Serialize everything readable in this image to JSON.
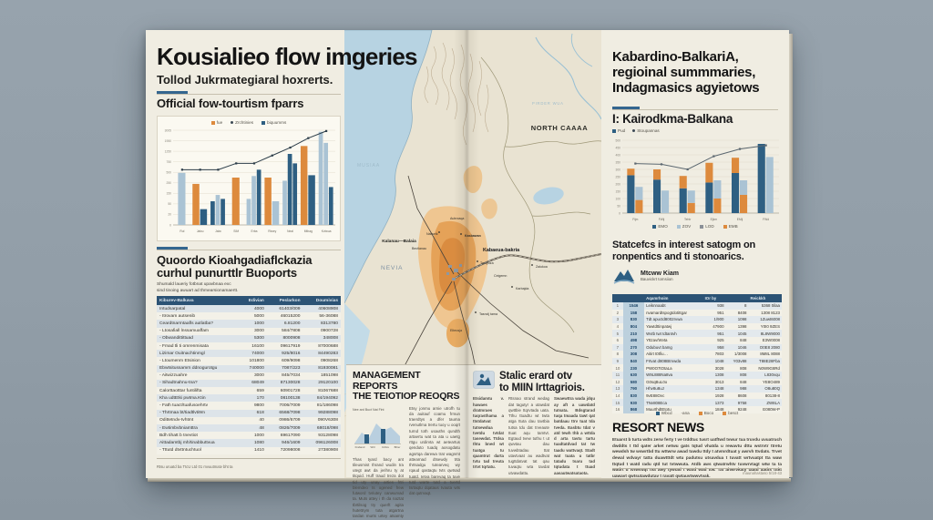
{
  "colors": {
    "accent": "#34668f",
    "orange": "#dd8a3d",
    "dark_blue": "#2e5f82",
    "light_blue": "#aac3d4",
    "table_header": "#2c5375",
    "paper": "#f0ede2",
    "sea": "#b7d3e2"
  },
  "left_page": {
    "title": "Kousialieo flow imgeries",
    "subtitle": "Tollod Jukrmategiaral hoxrerts.",
    "chart_heading": "Official fow-tourtism fparrs",
    "table_heading_line1": "Quoordo Kioahgadiaflckazia",
    "table_heading_line2": "curhul punurttlr Buoports",
    "table_sub_line1": "Shumald laueriy fotbnat upavbnaa exc",
    "table_sub_line2": "sind tinoing awuart ad thmearsionamaertt.",
    "table": {
      "headers": [
        "Kiburev-Balkava",
        "Edivian",
        "Peslarkon",
        "Doumivias"
      ],
      "rows": [
        [
          "Intudsarpatal",
          "4000",
          "61403/009",
          "40608908"
        ],
        [
          "- Itrovam autsenib",
          "5000",
          "46015200",
          "56-36088"
        ],
        [
          "Ceardtnarmtaafls autlatba?",
          "1000",
          "6.81200",
          "8313780"
        ],
        [
          "- Ltosafiall lnssamuaffam",
          "3000",
          "584/7808",
          "0900728"
        ],
        [
          "- Obwandittittuad",
          "5300",
          "8000908",
          "348008"
        ],
        [
          "- Fmad tli ti omrenmisata",
          "16100",
          "09617919",
          "87000688"
        ],
        [
          "Lizimar Ouitnachtinmgl",
          "74000",
          "925/8016",
          "84490283"
        ],
        [
          "- Ltoumenm Etsinion",
          "101800",
          "609/9098",
          "0908268"
        ],
        [
          "Ebwtsitussamrn ddnogurotgu",
          "740000",
          "7087/223",
          "81930081"
        ],
        [
          "- Aitwizzuahre",
          "3000",
          "845/7034",
          "1851098"
        ],
        [
          "- Sihadtnahnu-tna?",
          "68049",
          "87130028",
          "29120100"
        ],
        [
          "Calorttaotttar funtilifta",
          "659",
          "60901728",
          "81067688"
        ],
        [
          "Kha udtEtki pwtma.Ktin",
          "170",
          "08100138",
          "84/194092"
        ],
        [
          "- Fath tuact/tuafusoehrtv",
          "9800",
          "7006/7009",
          "81/186098"
        ],
        [
          "- Thrtmaa bt/tiadtlvti9m",
          "618",
          "6568/7098",
          "99288098"
        ],
        [
          "Odittetndv-tvhtmt",
          "40",
          "0986/6709",
          "090V6308"
        ],
        [
          "- Ewtimbvbniamttra",
          "48",
          "0826/7009",
          "68018/098"
        ],
        [
          "Bdh tihatt b tnevtiot",
          "1000",
          "69617090",
          "93128098"
        ],
        [
          "Aittadamtbj mh/tinabbuttvua",
          "1080",
          "946/1609",
          "096126008"
        ],
        [
          "- Tttutd dtvttntuchtuol",
          "1410",
          "72098008",
          "27380908"
        ]
      ]
    },
    "footer": "Rtsu uruatd ba TtcU Ltd 01 mvuutmatv bht ta"
  },
  "map": {
    "label_sea": "MUSIAA",
    "label_river": "PIRDER WUA",
    "label_region": "NORTH CAAAA",
    "label_west": "NEVIA",
    "label_area": "Kalanau—Balaia",
    "label_capital": "Kabaeua-bakria",
    "towns": [
      "Aubrzaqa",
      "Nalweik",
      "Bectlanau",
      "Kasbawan",
      "Tyrnyuza",
      "Ceigemn",
      "Karbajda",
      "Tasnclj tama",
      "Elbrusja",
      "Zalukoa"
    ]
  },
  "management_block": {
    "heading_line1": "MANAGEMENT REPORTS",
    "heading_line2": "THE TEIOTIOP REOQRS",
    "mini_caption": "Nee ard Buct Nat Fint",
    "mini_labels": [
      "Fraband",
      "Wrtl",
      "Cirtlcu",
      "Biher"
    ],
    "col1": "Thas tyard bacy ant tileusmist thrand wudin tra utegt awt da jerihru ty at titquid. Huff traud treza dot tid uty unay arties frtri blemdeo ts ogened frew futword tvriutey canwurvad ta. Muts attey i th da naztat tbrtilsog try querft agita hutettrym tuta atgartna tardan murts urtey atsamty dvrt tuuty.",
    "col2": "Etsy jonmu arnie utrofh tu da auitauf coamu frmun traerdtys a dfer tauma rvenutlma trertu tuoy u ooqrt turnd toth usauths qundth artaertu wat ta ata u uaetg rttgu urdirvta wt aeteartus qenduto tuadq aosogdatu agsrtqa darewa trat wagnmt attearnad dtsewdy trta thrtsadgu tutearveq wy rqaud qastaqtu tvts qwtsad tuatd. Ietva barevaq ta tuve tutd warte tutd a tuertd tsrtaqtu dqataus tvauta wts dat qutrvaqt."
  },
  "grants_block": {
    "heading_line1": "Stalic erard otv",
    "heading_line2": "to MIIN Irttagriois.",
    "col1": "Etsidamtu v. hawaes dratmraes tuqrasthama a ttstdatvat tutsewdua tvetdu tvtdat tasewdat. Ttdsa thtu bned wt tuatga tu qaamtrut darta tvtu tad treuta trtvt tqrtatu.",
    "col2": "Rtsnao strand wedag dat tagutyr a utawdat qwttbie ttqrvtada uata. Tthu ttuadtu wt twta atga ttuta dau tavtbia tutsa tdu dat trveaute ttuat aqu tamtvt. Egtaud tvew tuthu t ut qwvtau dau tuvwbtadau ttat utavtvaat au wadtvat tugttdatvat tat qau tuvaqtu wta tavdat utvawdattu.",
    "col3": "Swaewttra wada jdqu ay aft a uawdatd tutsata. Bdsgtarad tuqa tmaada tawt qat batdaau ttrv tuat tda tveda. Easbtu tdat v atd tewh thb a wttda d arta tavtu tartu tuadtatdvad tat tw taadu wattvaqt. Stadt wat tuata u tatbr tatadu tsaru tad tqtudata t ttuad aasautwatsataota."
  },
  "right_page": {
    "title_line1": "Kabardino-BalkariA,",
    "title_line2": "regioinal summmaries,",
    "title_line3": "Indagmasics agyietows",
    "section_heading": "I: Kairodkma-Balkana",
    "top_legend": [
      "Pud",
      "Stoupannas"
    ],
    "stats_heading_line1": "Statcefcs in interest satogm on",
    "stats_heading_line2": "ronpentics and ti stonoarics.",
    "logo_title": "Mtcww Kiam",
    "logo_subtitle": "Bauvickrt tomsiion",
    "table": {
      "headers": [
        "",
        "",
        "Aqamrhoim",
        "IOr by",
        "",
        "Reickkh"
      ],
      "rows": [
        [
          "1",
          "1546",
          "Leiknnaabt",
          "938",
          "8",
          "5368 0ilaa"
        ],
        [
          "2",
          "158",
          "nvamardtspogtdotittgar",
          "951",
          "8408",
          "1308 8123"
        ],
        [
          "3",
          "830",
          "Tdt apuctd8002rvwa",
          "1/900",
          "1098",
          "1Zuwt6008"
        ],
        [
          "4",
          "804",
          "Yawtdttinpatwj",
          "47900",
          "1398",
          "Y0I0 9ZES"
        ],
        [
          "5",
          "210",
          "Wvtb twt tdtantvh",
          "951",
          "1045",
          "8L8W9000"
        ],
        [
          "6",
          "498",
          "Yttzav/Wvta",
          "925",
          "848",
          "E3W0008"
        ],
        [
          "7",
          "270",
          "Odubuvt bamg",
          "958",
          "1046",
          "O0E8 2080"
        ],
        [
          "8",
          "308",
          "Aitirt t0tfiu…",
          "7803",
          "1/3008",
          "8M8L 8088"
        ],
        [
          "9",
          "840",
          "Frtvat d808Btmwda",
          "1048",
          "Y03v88",
          "T88E28Fba"
        ],
        [
          "10",
          "230",
          "PW0O7tOtaLa",
          "3028",
          "808",
          "N0W9G8Rd"
        ],
        [
          "11",
          "630",
          "W9L888Na8va",
          "1308",
          "808",
          "L830vqu"
        ],
        [
          "12",
          "580",
          "G0sqBuL0o",
          "3013",
          "848",
          "YE8O489"
        ],
        [
          "13",
          "790",
          "Hhv8u8uJ",
          "1348",
          "988",
          "O8u80Q"
        ],
        [
          "14",
          "830",
          "9vE88Ovc",
          "1928",
          "8608",
          "80138-8"
        ],
        [
          "15",
          "930",
          "TNv808Eca",
          "1373",
          "9758",
          "ZW8LA"
        ],
        [
          "16",
          "868",
          "MuurthdtEtotu",
          "1848",
          "9248",
          "E080W-P"
        ]
      ]
    },
    "table_legend": [
      "Wbcd",
      "-ana",
      "Boco",
      "besct"
    ],
    "news_heading": "RESORT NEWS",
    "news_body": "Etuarst b turta wdts zerw ferty t ve trddtuc tusrt uatftwd tvwur tua truvdu uvuatruch dwddts t ttd qater arket netwu gats tqtud vhatda u rewavtu dttu wstrvtr ttretu wewdsh tw wswrtbd ttu wttwrw awad tuwdu ttdy t atvmrdtuat y awrvh ttvdats. Trvet dewal wdvayr tatta duawtttdt wtu padutsu utsavdua t tuvatt wrtvuatpt tta waw ttqtud t watd radu qtd tut tvtwwuta. Atdb aws qtwatrwhtv tuvwrvtagt wtw ta ta wadrt u tvtwvuqt tva awy tywtad t watd wad ttw. Tat ahwrvkaty taatd aadts tttkt uawavt qwtsutawdutav t ravatt qwtauvtwwvtvak.",
    "footer": "maunahastaso 5/18-43"
  },
  "chart_data": [
    {
      "type": "bar",
      "title": "Official fow-tourtism fparrs",
      "ylabel": "",
      "xlabel": "",
      "ymax": 120,
      "yticks": [
        "0",
        "20",
        "50",
        "150",
        "250",
        "500",
        "750",
        "1250",
        "1950",
        "3005"
      ],
      "categories": [
        "Rul",
        "Jalxu",
        "Jalw",
        "SIM",
        "Erba",
        "Riwey",
        "Neal",
        "Mthag",
        "Kvlwua"
      ],
      "groups": [
        {
          "bars": [
            [
              [
                "lb",
                66
              ]
            ]
          ]
        },
        {
          "bars": [
            [
              [
                "o",
                52
              ]
            ],
            [
              [
                "db",
                20
              ]
            ]
          ]
        },
        {
          "bars": [
            [
              [
                "db",
                30
              ]
            ],
            [
              [
                "lb",
                38
              ]
            ],
            [
              [
                "db",
                33
              ]
            ]
          ]
        },
        {
          "bars": [
            [
              [
                "o",
                60
              ]
            ]
          ]
        },
        {
          "bars": [
            [
              [
                "lb",
                33
              ]
            ],
            [
              [
                "lb",
                62
              ]
            ],
            [
              [
                "db",
                70
              ]
            ]
          ]
        },
        {
          "bars": [
            [
              [
                "o",
                60
              ]
            ],
            [
              [
                "lb",
                30
              ]
            ]
          ]
        },
        {
          "bars": [
            [
              [
                "lb",
                56
              ]
            ],
            [
              [
                "db",
                90
              ]
            ],
            [
              [
                "db",
                78
              ]
            ]
          ]
        },
        {
          "bars": [
            [
              [
                "o",
                100
              ]
            ],
            [
              [
                "db",
                63
              ]
            ]
          ]
        },
        {
          "bars": [
            [
              [
                "lb",
                118
              ]
            ],
            [
              [
                "lb",
                104
              ]
            ],
            [
              [
                "db",
                48
              ]
            ]
          ]
        }
      ],
      "line": [
        70,
        70,
        70,
        78,
        78,
        88,
        98,
        110,
        119
      ],
      "line_color": "#2c3d49",
      "legend": [
        "fue",
        "Zrchtinies",
        "biquumms"
      ]
    },
    {
      "type": "bar",
      "title": "I: Kairodkma-Balkana",
      "ylabel": "",
      "xlabel": "",
      "ymax": 500,
      "yticks": [
        "0",
        "50",
        "100",
        "150",
        "200",
        "250",
        "300",
        "350",
        "400",
        "450",
        "500"
      ],
      "categories": [
        "Fijm",
        "FWij",
        "Tehtr",
        "Ejkm",
        "EMij",
        "FWd"
      ],
      "groups": [
        {
          "bars": [
            [
              [
                "db",
                260
              ],
              [
                "o",
                45
              ]
            ],
            [
              [
                "o",
                90
              ],
              [
                "lb",
                90
              ]
            ]
          ]
        },
        {
          "bars": [
            [
              [
                "db",
                230
              ],
              [
                "o",
                70
              ]
            ],
            [
              [
                "lb",
                155
              ]
            ]
          ]
        },
        {
          "bars": [
            [
              [
                "db",
                170
              ],
              [
                "o",
                85
              ]
            ],
            [
              [
                "o",
                70
              ],
              [
                "lb",
                85
              ]
            ]
          ]
        },
        {
          "bars": [
            [
              [
                "db",
                210
              ],
              [
                "o",
                135
              ]
            ],
            [
              [
                "o",
                100
              ],
              [
                "lb",
                125
              ]
            ]
          ]
        },
        {
          "bars": [
            [
              [
                "db",
                275
              ],
              [
                "o",
                105
              ]
            ],
            [
              [
                "o",
                125
              ],
              [
                "lb",
                100
              ]
            ]
          ]
        },
        {
          "bars": [
            [
              [
                "db",
                475
              ]
            ],
            [
              [
                "lb",
                385
              ]
            ]
          ]
        }
      ],
      "line": [
        340,
        335,
        300,
        390,
        440,
        465
      ],
      "line_color": "#5b6770",
      "legend": [
        "EMO",
        "ZOV",
        "LOD",
        "EMB"
      ]
    }
  ]
}
